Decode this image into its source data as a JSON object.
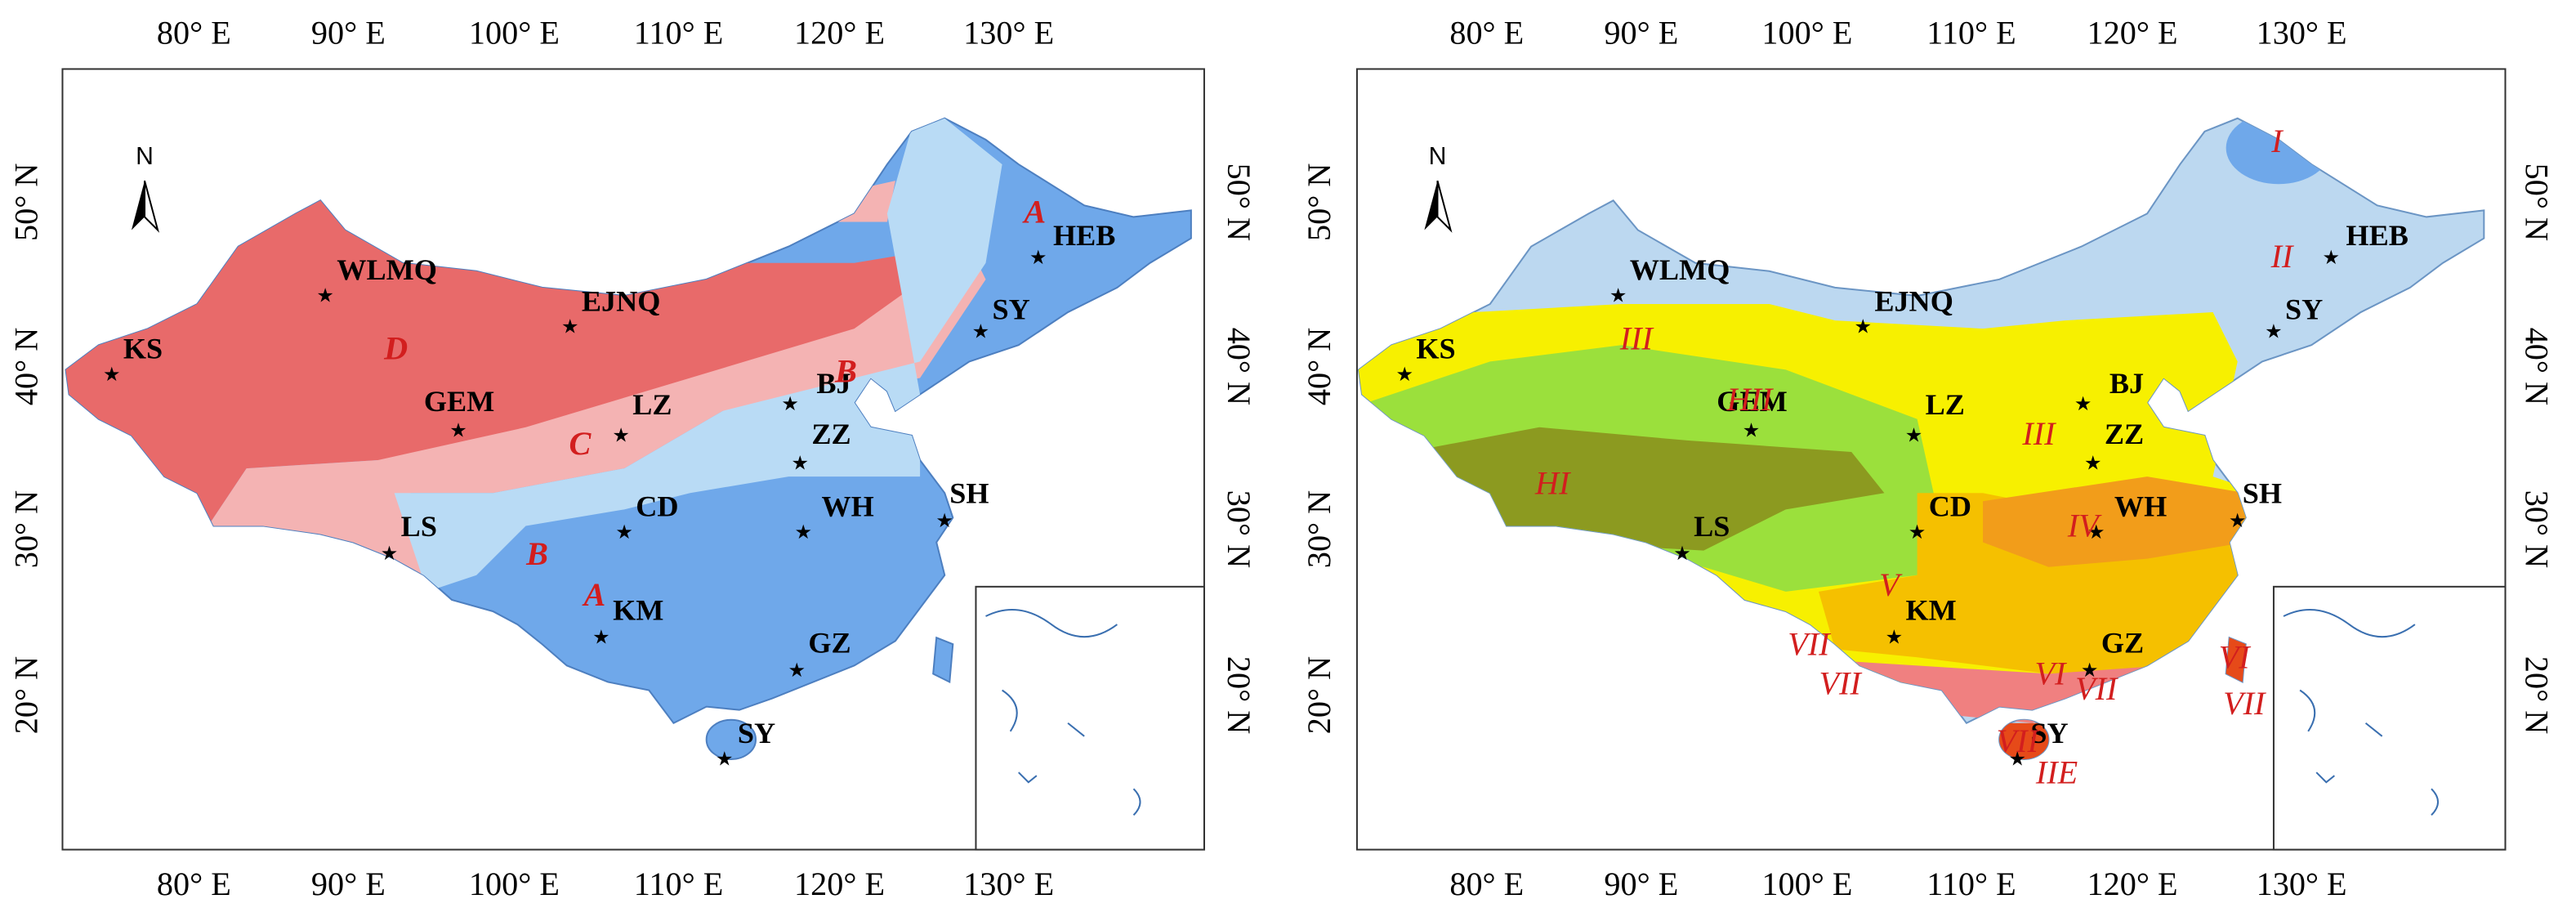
{
  "panels": [
    {
      "north": "N",
      "lon_labels_top": [
        "80° E",
        "90° E",
        "100° E",
        "110° E",
        "120° E",
        "130° E"
      ],
      "lon_labels_bottom": [
        "80° E",
        "90° E",
        "100° E",
        "110° E",
        "120° E",
        "130° E"
      ],
      "lat_labels_left": [
        "50° N",
        "40° N",
        "30° N",
        "20° N"
      ],
      "lat_labels_right": [
        "50° N",
        "40° N",
        "30° N",
        "20° N"
      ],
      "cities": [
        "KS",
        "WLMQ",
        "EJNQ",
        "GEM",
        "LZ",
        "BJ",
        "ZZ",
        "CD",
        "WH",
        "SH",
        "LS",
        "KM",
        "GZ",
        "SY",
        "HEB",
        "SY"
      ],
      "zones": [
        "D",
        "C",
        "B",
        "B",
        "A",
        "A"
      ]
    },
    {
      "north": "N",
      "lon_labels_top": [
        "80° E",
        "90° E",
        "100° E",
        "110° E",
        "120° E",
        "130° E"
      ],
      "lon_labels_bottom": [
        "80° E",
        "90° E",
        "100° E",
        "110° E",
        "120° E",
        "130° E"
      ],
      "lat_labels_left": [
        "50° N",
        "40° N",
        "30° N",
        "20° N"
      ],
      "lat_labels_right": [
        "50° N",
        "40° N",
        "30° N",
        "20° N"
      ],
      "cities": [
        "KS",
        "WLMQ",
        "EJNQ",
        "GEM",
        "LZ",
        "BJ",
        "ZZ",
        "CD",
        "WH",
        "SH",
        "LS",
        "KM",
        "GZ",
        "SY",
        "HEB",
        "SY"
      ],
      "zones": [
        "I",
        "II",
        "III",
        "III",
        "HII",
        "HI",
        "IV",
        "V",
        "VII",
        "VII",
        "VI",
        "VII",
        "VII",
        "IIE",
        "VI",
        "VII"
      ]
    }
  ]
}
